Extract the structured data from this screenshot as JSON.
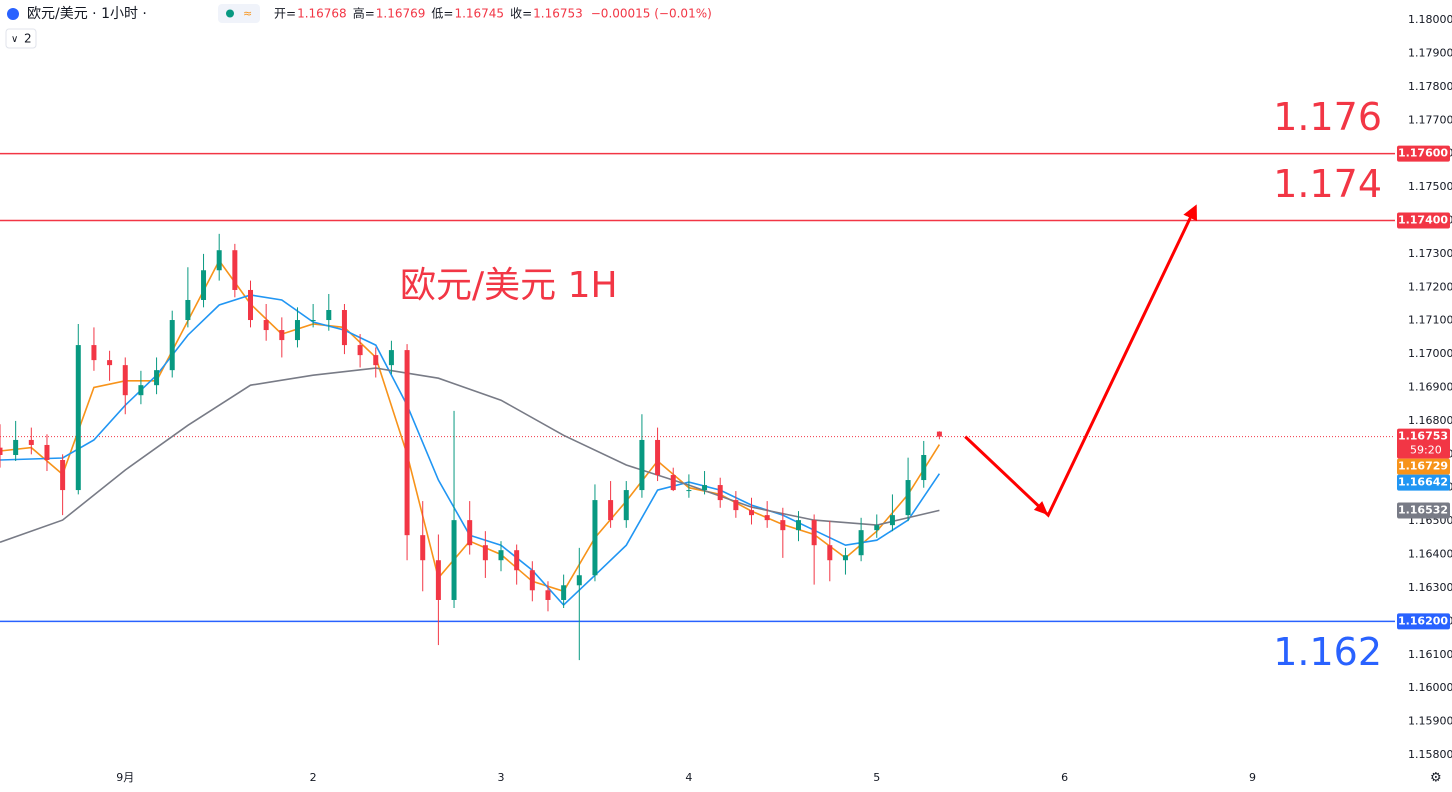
{
  "chart_data": {
    "type": "candlestick",
    "symbol": "欧元/美元 · 1小时 ·",
    "indicator_count": 2,
    "ohlc_header": [
      {
        "label": "开=",
        "value": 1.16768
      },
      {
        "label": "高=",
        "value": 1.16769
      },
      {
        "label": "低=",
        "value": 1.16745
      },
      {
        "label": "收=",
        "value": 1.16753
      }
    ],
    "change": "−0.00015 (−0.01%)",
    "title": "欧元/美元 1H",
    "up_color": "#089981",
    "down_color": "#f23645",
    "xlim": [
      -16,
      162.2
    ],
    "ylim": [
      1.1577,
      1.1806
    ],
    "xticks": [
      {
        "value": 0,
        "label": "9月"
      },
      {
        "value": 24,
        "label": "2"
      },
      {
        "value": 48,
        "label": "3"
      },
      {
        "value": 72,
        "label": "4"
      },
      {
        "value": 96,
        "label": "5"
      },
      {
        "value": 120,
        "label": "6"
      },
      {
        "value": 144,
        "label": "9"
      }
    ],
    "yticks": [
      {
        "value": 1.158,
        "label": "1.15800"
      },
      {
        "value": 1.159,
        "label": "1.15900"
      },
      {
        "value": 1.16,
        "label": "1.16000"
      },
      {
        "value": 1.161,
        "label": "1.16100"
      },
      {
        "value": 1.162,
        "label": "1.16200"
      },
      {
        "value": 1.163,
        "label": "1.16300"
      },
      {
        "value": 1.164,
        "label": "1.16400"
      },
      {
        "value": 1.165,
        "label": "1.16500"
      },
      {
        "value": 1.166,
        "label": "1.16600"
      },
      {
        "value": 1.167,
        "label": "1.16700"
      },
      {
        "value": 1.168,
        "label": "1.16800"
      },
      {
        "value": 1.169,
        "label": "1.16900"
      },
      {
        "value": 1.17,
        "label": "1.17000"
      },
      {
        "value": 1.171,
        "label": "1.17100"
      },
      {
        "value": 1.172,
        "label": "1.17200"
      },
      {
        "value": 1.173,
        "label": "1.17300"
      },
      {
        "value": 1.174,
        "label": "1.17400"
      },
      {
        "value": 1.175,
        "label": "1.17500"
      },
      {
        "value": 1.176,
        "label": "1.17600"
      },
      {
        "value": 1.177,
        "label": "1.17700"
      },
      {
        "value": 1.178,
        "label": "1.17800"
      },
      {
        "value": 1.179,
        "label": "1.17900"
      },
      {
        "value": 1.18,
        "label": "1.18000"
      }
    ],
    "candles": {
      "x": [
        -16,
        -14,
        -12,
        -10,
        -8,
        -6,
        -4,
        -2,
        0,
        2,
        4,
        6,
        8,
        10,
        12,
        14,
        16,
        18,
        20,
        22,
        24,
        26,
        28,
        30,
        32,
        34,
        36,
        38,
        40,
        42,
        44,
        46,
        48,
        50,
        52,
        54,
        56,
        58,
        60,
        62,
        64,
        66,
        68,
        70,
        72,
        74,
        76,
        78,
        80,
        82,
        84,
        86,
        88,
        90,
        92,
        94,
        96,
        98,
        100,
        102,
        104
      ],
      "open": [
        1.1672,
        1.16698,
        1.16743,
        1.16728,
        1.16683,
        1.16593,
        1.17027,
        1.16982,
        1.16967,
        1.16877,
        1.16907,
        1.16952,
        1.17102,
        1.17162,
        1.17251,
        1.17311,
        1.17192,
        1.17102,
        1.17072,
        1.17042,
        1.17102,
        1.17102,
        1.17132,
        1.17027,
        1.16997,
        1.16967,
        1.17012,
        1.16458,
        1.16383,
        1.16264,
        1.16503,
        1.16428,
        1.16383,
        1.16413,
        1.16353,
        1.16293,
        1.16264,
        1.16308,
        1.16338,
        1.16563,
        1.16503,
        1.16593,
        1.16743,
        1.16638,
        1.16593,
        1.16593,
        1.16608,
        1.16563,
        1.16533,
        1.16518,
        1.16503,
        1.16473,
        1.16503,
        1.16428,
        1.16383,
        1.16398,
        1.16473,
        1.16488,
        1.16518,
        1.16623,
        1.16768
      ],
      "high": [
        1.1679,
        1.168,
        1.1678,
        1.1676,
        1.167,
        1.1709,
        1.1708,
        1.1701,
        1.1699,
        1.1695,
        1.1699,
        1.1713,
        1.1726,
        1.173,
        1.1736,
        1.1733,
        1.1722,
        1.1715,
        1.1711,
        1.1714,
        1.1715,
        1.1718,
        1.1715,
        1.1706,
        1.1702,
        1.1704,
        1.1703,
        1.1656,
        1.1646,
        1.1683,
        1.1656,
        1.1647,
        1.1644,
        1.1643,
        1.1638,
        1.1632,
        1.1634,
        1.1642,
        1.1661,
        1.1662,
        1.1662,
        1.1682,
        1.1678,
        1.1666,
        1.1664,
        1.1665,
        1.1663,
        1.1659,
        1.1657,
        1.1656,
        1.1654,
        1.1653,
        1.1652,
        1.165,
        1.1642,
        1.1651,
        1.1652,
        1.1658,
        1.1669,
        1.1674,
        1.16769
      ],
      "low": [
        1.1666,
        1.1668,
        1.167,
        1.1665,
        1.16518,
        1.1658,
        1.1695,
        1.1692,
        1.1682,
        1.1685,
        1.1688,
        1.1693,
        1.1708,
        1.1714,
        1.1722,
        1.1717,
        1.1708,
        1.1704,
        1.1699,
        1.1702,
        1.1708,
        1.1707,
        1.17,
        1.1696,
        1.1693,
        1.1694,
        1.16383,
        1.1629,
        1.16129,
        1.1624,
        1.164,
        1.1633,
        1.1635,
        1.1631,
        1.1626,
        1.1623,
        1.1624,
        1.16084,
        1.1632,
        1.1648,
        1.1648,
        1.1657,
        1.1662,
        1.1659,
        1.1657,
        1.1658,
        1.1654,
        1.1651,
        1.1649,
        1.1648,
        1.1639,
        1.1644,
        1.1631,
        1.1632,
        1.1634,
        1.1638,
        1.1645,
        1.1647,
        1.165,
        1.166,
        1.16745
      ],
      "close": [
        1.16698,
        1.16743,
        1.16728,
        1.16683,
        1.16593,
        1.17027,
        1.16982,
        1.16967,
        1.16877,
        1.16907,
        1.16952,
        1.17102,
        1.17162,
        1.17251,
        1.17311,
        1.17192,
        1.17102,
        1.17072,
        1.17042,
        1.17102,
        1.17102,
        1.17132,
        1.17027,
        1.16997,
        1.16967,
        1.17012,
        1.16458,
        1.16383,
        1.16264,
        1.16503,
        1.16428,
        1.16383,
        1.16413,
        1.16353,
        1.16293,
        1.16264,
        1.16308,
        1.16338,
        1.16563,
        1.16503,
        1.16593,
        1.16743,
        1.16638,
        1.16593,
        1.16593,
        1.16608,
        1.16563,
        1.16533,
        1.16518,
        1.16503,
        1.16473,
        1.16503,
        1.16428,
        1.16383,
        1.16398,
        1.16473,
        1.16488,
        1.16518,
        1.16623,
        1.16698,
        1.16753
      ]
    },
    "ma_lines": [
      {
        "color": "#f7931a",
        "x": [
          -16,
          -12,
          -8,
          -4,
          0,
          4,
          8,
          12,
          16,
          20,
          24,
          28,
          32,
          36,
          40,
          44,
          48,
          52,
          56,
          60,
          64,
          68,
          72,
          76,
          80,
          84,
          88,
          92,
          96,
          100,
          104
        ],
        "values": [
          1.1671,
          1.1672,
          1.1664,
          1.169,
          1.1692,
          1.1692,
          1.171,
          1.1728,
          1.1715,
          1.1706,
          1.1709,
          1.1708,
          1.1699,
          1.167,
          1.1633,
          1.1644,
          1.164,
          1.1632,
          1.1629,
          1.1645,
          1.1656,
          1.1668,
          1.166,
          1.1658,
          1.1653,
          1.1649,
          1.1646,
          1.1639,
          1.1647,
          1.1658,
          1.16729
        ]
      },
      {
        "color": "#2196f3",
        "x": [
          -16,
          -8,
          -4,
          0,
          4,
          8,
          12,
          16,
          20,
          24,
          28,
          32,
          36,
          40,
          44,
          48,
          52,
          56,
          60,
          64,
          68,
          72,
          76,
          80,
          84,
          88,
          92,
          96,
          100,
          104
        ],
        "values": [
          1.16683,
          1.16689,
          1.16743,
          1.16847,
          1.16937,
          1.17057,
          1.17147,
          1.17177,
          1.17162,
          1.17096,
          1.17072,
          1.17027,
          1.16847,
          1.16623,
          1.16458,
          1.16428,
          1.16353,
          1.16249,
          1.16338,
          1.16428,
          1.16593,
          1.16617,
          1.16593,
          1.16548,
          1.16518,
          1.16473,
          1.16428,
          1.16443,
          1.16503,
          1.16642
        ]
      },
      {
        "color": "#787b86",
        "x": [
          -16,
          -8,
          0,
          8,
          16,
          24,
          32,
          40,
          48,
          56,
          64,
          72,
          80,
          88,
          96,
          104
        ],
        "values": [
          1.16437,
          1.16503,
          1.16653,
          1.16787,
          1.16907,
          1.16937,
          1.16958,
          1.16928,
          1.16862,
          1.16757,
          1.16668,
          1.16608,
          1.16542,
          1.16503,
          1.16488,
          1.16532
        ]
      }
    ],
    "levels": [
      {
        "value": 1.176,
        "label": "1.176",
        "color": "#f23645"
      },
      {
        "value": 1.174,
        "label": "1.174",
        "color": "#f23645"
      },
      {
        "value": 1.162,
        "label": "1.162",
        "color": "#2962ff"
      }
    ],
    "last_price": 1.16753,
    "price_tags": [
      {
        "value": 1.176,
        "label": "1.17600",
        "color": "#f23645"
      },
      {
        "value": 1.174,
        "label": "1.17400",
        "color": "#f23645"
      },
      {
        "value": 1.16753,
        "label": "1.16753",
        "color": "#f23645",
        "countdown": "59:20"
      },
      {
        "value": 1.16729,
        "label": "1.16729",
        "color": "#f7931a"
      },
      {
        "value": 1.16642,
        "label": "1.16642",
        "color": "#2196f3"
      },
      {
        "value": 1.16532,
        "label": "1.16532",
        "color": "#787b86"
      },
      {
        "value": 1.162,
        "label": "1.16200",
        "color": "#2962ff"
      }
    ],
    "arrow": {
      "color": "#ff0000",
      "x": [
        107.3,
        117.9,
        136.7
      ],
      "values": [
        1.16753,
        1.16518,
        1.1744
      ]
    }
  }
}
